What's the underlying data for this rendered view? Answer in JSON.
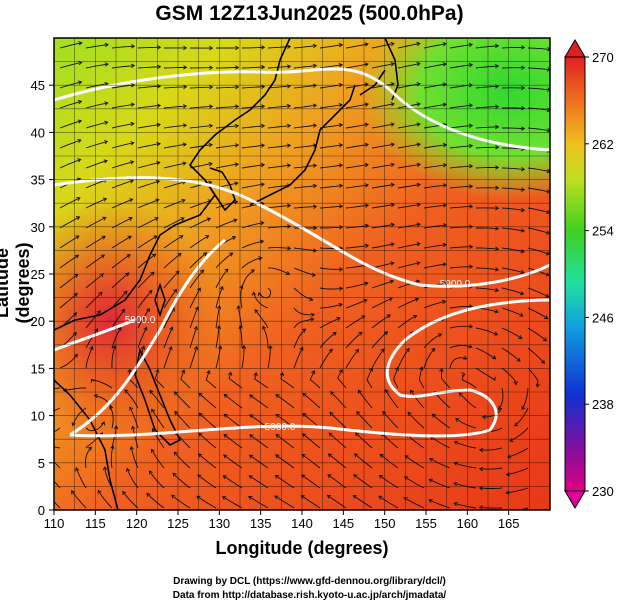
{
  "title": "GSM 12Z13Jun2025 (500.0hPa)",
  "axes": {
    "xlabel": "Longitude (degrees)",
    "ylabel": "Latitude  (degrees)",
    "xticks": [
      "110",
      "115",
      "120",
      "125",
      "130",
      "135",
      "140",
      "145",
      "150",
      "155",
      "160",
      "165"
    ],
    "yticks": [
      "0",
      "5",
      "10",
      "15",
      "20",
      "25",
      "30",
      "35",
      "40",
      "45"
    ],
    "xlim": [
      110,
      170
    ],
    "ylim": [
      0,
      50
    ]
  },
  "colorbar": {
    "labels": [
      "270",
      "262",
      "254",
      "246",
      "238",
      "230"
    ],
    "range": [
      230,
      270
    ],
    "colors": [
      "#e00080",
      "#6010a0",
      "#1030d0",
      "#10a0e0",
      "#20e0a0",
      "#40d020",
      "#c0e020",
      "#f0c020",
      "#f08020",
      "#e83020",
      "#d81010"
    ]
  },
  "contour_label": "5900.0",
  "credits": {
    "line1": "Drawing by DCL (https://www.gfd-dennou.org/library/dcl/)",
    "line2": "Data from http://database.rish.kyoto-u.ac.jp/arch/jmadata/"
  }
}
